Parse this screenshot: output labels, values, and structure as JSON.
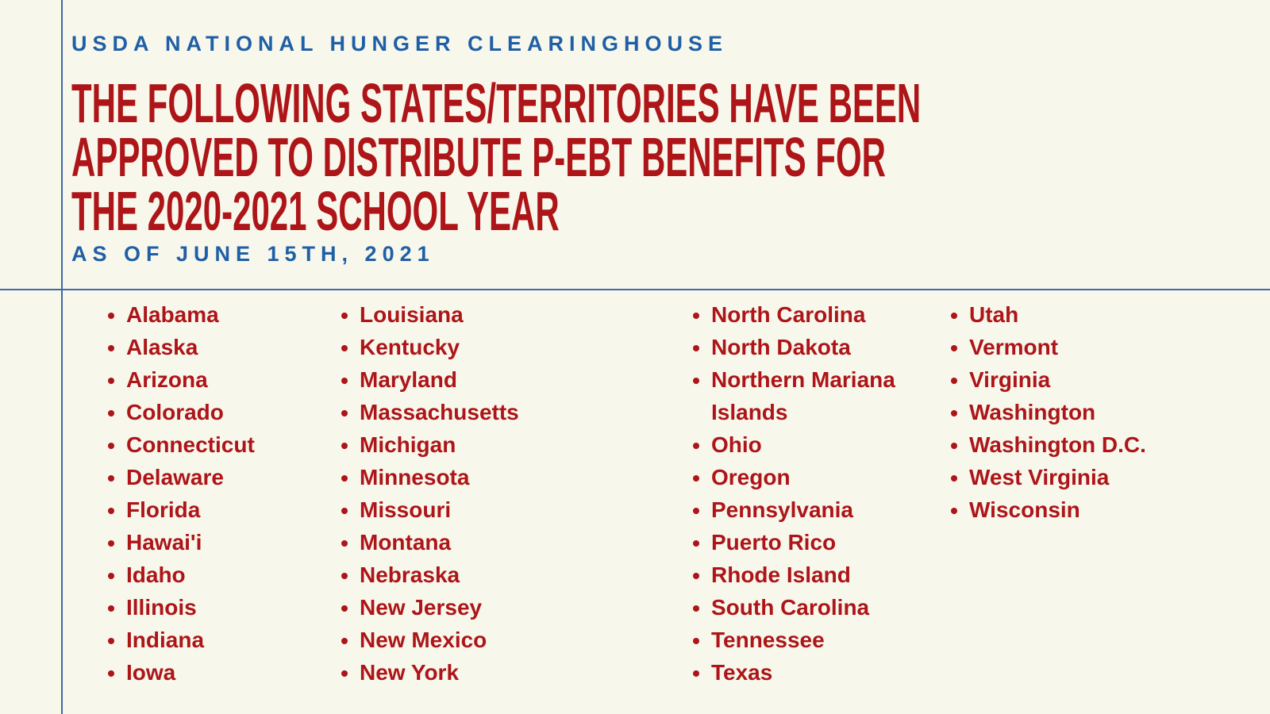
{
  "header": {
    "org": "USDA NATIONAL HUNGER CLEARINGHOUSE",
    "title_lines": [
      "THE FOLLOWING STATES/TERRITORIES HAVE BEEN",
      "APPROVED TO DISTRIBUTE P-EBT BENEFITS FOR",
      "THE 2020-2021 SCHOOL YEAR"
    ],
    "date": "AS OF JUNE 15TH, 2021"
  },
  "columns": [
    [
      "Alabama",
      "Alaska",
      "Arizona",
      "Colorado",
      "Connecticut",
      "Delaware",
      "Florida",
      "Hawai'i",
      "Idaho",
      "Illinois",
      "Indiana",
      "Iowa"
    ],
    [
      "Louisiana",
      "Kentucky",
      "Maryland",
      "Massachusetts",
      "Michigan",
      "Minnesota",
      "Missouri",
      "Montana",
      "Nebraska",
      "New Jersey",
      "New Mexico",
      "New York"
    ],
    [
      "North Carolina",
      "North Dakota",
      "Northern Mariana Islands",
      "Ohio",
      "Oregon",
      "Pennsylvania",
      "Puerto Rico",
      "Rhode Island",
      "South Carolina",
      "Tennessee",
      "Texas"
    ],
    [
      "Utah",
      "Vermont",
      "Virginia",
      "Washington",
      "Washington D.C.",
      "West Virginia",
      "Wisconsin"
    ]
  ]
}
